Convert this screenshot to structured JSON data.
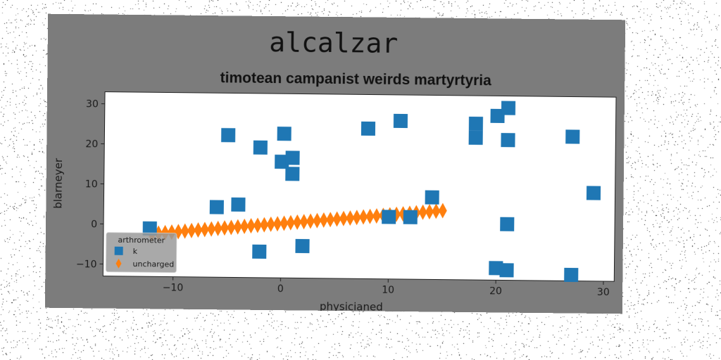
{
  "figure": {
    "suptitle": "alcalzar",
    "background": "#7c7c7c"
  },
  "chart_data": {
    "type": "scatter",
    "title": "timotean campanist weirds martyrtyria",
    "xlabel": "physicianed",
    "ylabel": "blarneyer",
    "xlim": [
      -16.5,
      31
    ],
    "ylim": [
      -13,
      33
    ],
    "xticks": [
      -10,
      0,
      10,
      20,
      30
    ],
    "yticks": [
      -10,
      0,
      10,
      20,
      30
    ],
    "xtick_labels": [
      "−10",
      "0",
      "10",
      "20",
      "30"
    ],
    "ytick_labels": [
      "−10",
      "0",
      "10",
      "20",
      "30"
    ],
    "grid": false,
    "legend": {
      "title": "arthrometer",
      "position": "lower-left"
    },
    "series": [
      {
        "name": "k",
        "marker": "square",
        "color": "#1f77b4",
        "points": [
          {
            "x": -12.2,
            "y": -1.0
          },
          {
            "x": -6.0,
            "y": 4.5
          },
          {
            "x": -5.0,
            "y": 22.5
          },
          {
            "x": -4.0,
            "y": 5.2
          },
          {
            "x": -2.0,
            "y": 19.5
          },
          {
            "x": -2.0,
            "y": -6.5
          },
          {
            "x": 0.0,
            "y": 16.0
          },
          {
            "x": 0.2,
            "y": 23.0
          },
          {
            "x": 1.0,
            "y": 17.0
          },
          {
            "x": 1.0,
            "y": 13.0
          },
          {
            "x": 2.0,
            "y": -5.0
          },
          {
            "x": 8.0,
            "y": 24.5
          },
          {
            "x": 10.0,
            "y": 2.5
          },
          {
            "x": 11.0,
            "y": 26.5
          },
          {
            "x": 12.0,
            "y": 2.5
          },
          {
            "x": 14.0,
            "y": 7.5
          },
          {
            "x": 18.0,
            "y": 26.0
          },
          {
            "x": 18.0,
            "y": 22.5
          },
          {
            "x": 20.0,
            "y": 28.0
          },
          {
            "x": 21.0,
            "y": 30.0
          },
          {
            "x": 21.0,
            "y": 22.0
          },
          {
            "x": 21.0,
            "y": 1.0
          },
          {
            "x": 20.0,
            "y": -10.0
          },
          {
            "x": 21.0,
            "y": -10.5
          },
          {
            "x": 27.0,
            "y": 23.0
          },
          {
            "x": 27.0,
            "y": -11.5
          },
          {
            "x": 29.0,
            "y": 9.0
          }
        ]
      },
      {
        "name": "uncharged",
        "marker": "thin-diamond",
        "color": "#ff7f0e",
        "x_start": -12.0,
        "x_end": 15.0,
        "y_start": -2.3,
        "y_end": 4.2,
        "count": 45
      }
    ]
  }
}
